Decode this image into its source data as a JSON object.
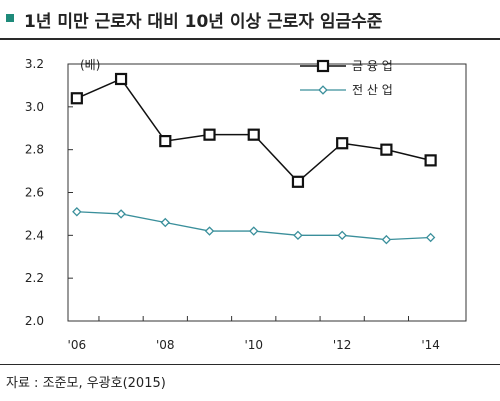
{
  "header": {
    "title": "1년 미만 근로자 대비 10년 이상 근로자 임금수준"
  },
  "footer": {
    "source": "자료 : 조준모, 우광호(2015)"
  },
  "chart_data": {
    "type": "line",
    "title": "1년 미만 근로자 대비 10년 이상 근로자 임금수준",
    "ylabel": "(배)",
    "xlabel": "",
    "ylim": [
      2.0,
      3.2
    ],
    "yticks": [
      "3.2",
      "3.0",
      "2.8",
      "2.6",
      "2.4",
      "2.2",
      "2.0"
    ],
    "xticks": [
      "'06",
      "'08",
      "'10",
      "'12",
      "'14"
    ],
    "x": [
      2006,
      2007,
      2008,
      2009,
      2010,
      2011,
      2012,
      2013,
      2014
    ],
    "series": [
      {
        "name": "금 융 업",
        "values": [
          3.04,
          3.13,
          2.84,
          2.87,
          2.87,
          2.65,
          2.83,
          2.8,
          2.75
        ],
        "color": "#111111",
        "marker": "square"
      },
      {
        "name": "전 산 업",
        "values": [
          2.51,
          2.5,
          2.46,
          2.42,
          2.42,
          2.4,
          2.4,
          2.38,
          2.39
        ],
        "color": "#3a8f9b",
        "marker": "diamond"
      }
    ],
    "legend_position": "top-right",
    "grid": false
  }
}
